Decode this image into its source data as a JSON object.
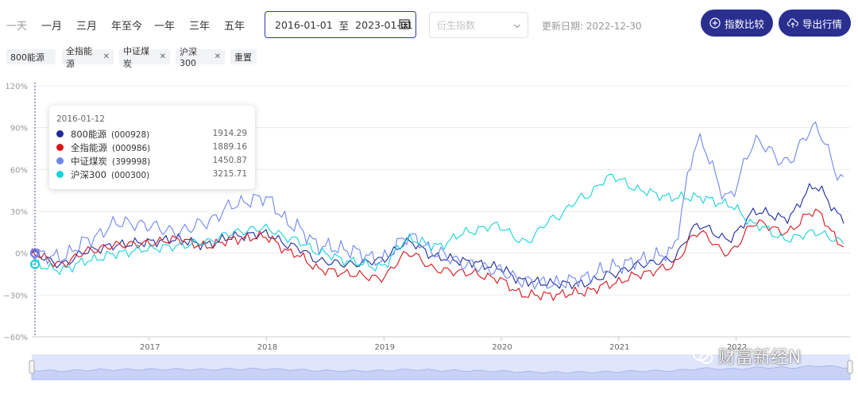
{
  "toolbar": {
    "ranges": [
      "一天",
      "一月",
      "三月",
      "年至今",
      "一年",
      "三年",
      "五年"
    ],
    "date_start": "2016-01-01",
    "date_sep": "至",
    "date_end": "2023-01-01",
    "derived_placeholder": "衍生指数",
    "updated": "更新日期: 2022-12-30",
    "compare_label": "指数比较",
    "export_label": "导出行情"
  },
  "tags": [
    {
      "label": "800能源",
      "removable": false
    },
    {
      "label": "全指能源",
      "removable": true
    },
    {
      "label": "中证煤炭",
      "removable": true
    },
    {
      "label": "沪深300",
      "removable": true
    },
    {
      "label": "重置",
      "removable": false
    }
  ],
  "tooltip": {
    "date": "2016-01-12",
    "rows": [
      {
        "name": "800能源",
        "code": "(000928)",
        "value": "1914.29",
        "color": "#1f2a9c"
      },
      {
        "name": "全指能源",
        "code": "(000986)",
        "value": "1889.16",
        "color": "#d8141b"
      },
      {
        "name": "中证煤炭",
        "code": "(399998)",
        "value": "1450.87",
        "color": "#6f86f0"
      },
      {
        "name": "沪深300",
        "code": "(000300)",
        "value": "3215.71",
        "color": "#17d2d9"
      }
    ]
  },
  "watermark": "财富新经N",
  "chart_data": {
    "type": "line",
    "x": [
      "2016-01",
      "2016-04",
      "2016-07",
      "2016-10",
      "2017-01",
      "2017-04",
      "2017-07",
      "2017-10",
      "2018-01",
      "2018-04",
      "2018-07",
      "2018-10",
      "2019-01",
      "2019-04",
      "2019-07",
      "2019-10",
      "2020-01",
      "2020-04",
      "2020-07",
      "2020-10",
      "2021-01",
      "2021-04",
      "2021-07",
      "2021-10",
      "2022-01",
      "2022-04",
      "2022-07",
      "2022-10",
      "2022-12"
    ],
    "xticks": [
      "2017",
      "2018",
      "2019",
      "2020",
      "2021",
      "2022"
    ],
    "yticks": [
      "120%",
      "90%",
      "60%",
      "30%",
      "0%",
      "−30%",
      "−60%"
    ],
    "ylim": [
      -60,
      120
    ],
    "series": [
      {
        "name": "800能源",
        "color": "#1f2a9c",
        "values": [
          0,
          -8,
          2,
          6,
          8,
          10,
          6,
          12,
          14,
          5,
          -6,
          -8,
          -5,
          8,
          -3,
          -6,
          -10,
          -20,
          -22,
          -22,
          -15,
          -8,
          -5,
          20,
          10,
          30,
          25,
          48,
          25
        ]
      },
      {
        "name": "全指能源",
        "color": "#d8141b",
        "values": [
          0,
          -8,
          2,
          6,
          7,
          10,
          5,
          10,
          12,
          0,
          -12,
          -15,
          -18,
          0,
          -12,
          -14,
          -18,
          -30,
          -30,
          -28,
          -22,
          -15,
          -10,
          15,
          0,
          22,
          15,
          30,
          6
        ]
      },
      {
        "name": "中证煤炭",
        "color": "#6f86f0",
        "values": [
          0,
          -3,
          10,
          22,
          20,
          15,
          22,
          35,
          40,
          20,
          5,
          2,
          -5,
          12,
          0,
          -8,
          -12,
          -20,
          -22,
          -18,
          -10,
          -5,
          0,
          80,
          40,
          80,
          65,
          90,
          52
        ]
      },
      {
        "name": "沪深300",
        "color": "#17d2d9",
        "values": [
          -8,
          -12,
          -5,
          0,
          3,
          5,
          8,
          15,
          18,
          10,
          0,
          -6,
          -10,
          10,
          5,
          15,
          20,
          8,
          25,
          40,
          55,
          45,
          40,
          40,
          35,
          20,
          10,
          15,
          8
        ]
      }
    ]
  }
}
